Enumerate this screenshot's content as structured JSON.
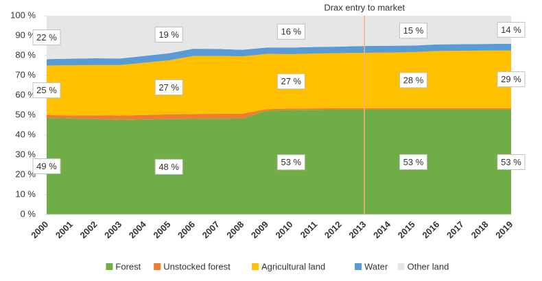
{
  "chart_data": {
    "type": "stacked-area",
    "categories": [
      "2000",
      "2001",
      "2002",
      "2003",
      "2004",
      "2005",
      "2006",
      "2007",
      "2008",
      "2009",
      "2010",
      "2011",
      "2012",
      "2013",
      "2014",
      "2015",
      "2016",
      "2017",
      "2018",
      "2019"
    ],
    "series": [
      {
        "name": "Forest",
        "color": "#70ad47",
        "values": [
          48.6,
          48.3,
          48.0,
          47.6,
          47.8,
          48.0,
          48.1,
          48.2,
          48.3,
          52.2,
          52.6,
          52.7,
          52.8,
          52.8,
          52.8,
          52.8,
          52.8,
          52.8,
          52.8,
          52.8
        ],
        "value_labels": [
          "49 %",
          null,
          null,
          null,
          null,
          "48 %",
          null,
          null,
          null,
          null,
          "53 %",
          null,
          null,
          null,
          null,
          "53 %",
          null,
          null,
          null,
          "53 %"
        ]
      },
      {
        "name": "Unstocked forest",
        "color": "#ed7d31",
        "values": [
          1.4,
          1.6,
          1.9,
          2.2,
          2.3,
          2.4,
          2.5,
          2.5,
          2.4,
          0.8,
          0.7,
          0.7,
          0.7,
          0.7,
          0.7,
          0.7,
          0.7,
          0.7,
          0.7,
          0.7
        ]
      },
      {
        "name": "Agricultural land",
        "color": "#ffc000",
        "values": [
          25.0,
          25.2,
          25.3,
          25.4,
          26.3,
          27.2,
          29.2,
          29.1,
          28.9,
          27.8,
          27.4,
          27.6,
          27.7,
          27.9,
          28.0,
          28.2,
          28.8,
          28.9,
          29.0,
          29.1
        ],
        "value_labels": [
          "25 %",
          null,
          null,
          null,
          null,
          "27 %",
          null,
          null,
          null,
          null,
          "27 %",
          null,
          null,
          null,
          null,
          "28 %",
          null,
          null,
          null,
          "29 %"
        ]
      },
      {
        "name": "Water",
        "color": "#5b9bd5",
        "values": [
          3.2,
          3.3,
          3.4,
          3.3,
          3.4,
          3.5,
          3.6,
          3.5,
          3.3,
          3.2,
          3.3,
          3.3,
          3.3,
          3.4,
          3.4,
          3.3,
          3.3,
          3.3,
          3.3,
          3.3
        ]
      },
      {
        "name": "Other land",
        "color": "#e6e6e6",
        "values": [
          21.8,
          21.6,
          21.4,
          21.5,
          20.2,
          18.9,
          16.6,
          16.7,
          17.1,
          16.0,
          16.0,
          15.7,
          15.5,
          15.2,
          15.1,
          15.0,
          14.4,
          14.3,
          14.2,
          14.1
        ],
        "value_labels": [
          "22 %",
          null,
          null,
          null,
          null,
          "19 %",
          null,
          null,
          null,
          null,
          "16 %",
          null,
          null,
          null,
          null,
          "15 %",
          null,
          null,
          null,
          "14 %"
        ]
      }
    ],
    "ylim": [
      0,
      100
    ],
    "yticks": [
      {
        "value": 0,
        "label": "0 %"
      },
      {
        "value": 10,
        "label": "10 %"
      },
      {
        "value": 20,
        "label": "20 %"
      },
      {
        "value": 30,
        "label": "30 %"
      },
      {
        "value": 40,
        "label": "40 %"
      },
      {
        "value": 50,
        "label": "50 %"
      },
      {
        "value": 60,
        "label": "60 %"
      },
      {
        "value": 70,
        "label": "70 %"
      },
      {
        "value": 80,
        "label": "80 %"
      },
      {
        "value": 90,
        "label": "90 %"
      },
      {
        "value": 100,
        "label": "100 %"
      }
    ],
    "annotation": {
      "label": "Drax entry to market",
      "category": "2013",
      "color": "#f4b183",
      "text_color": "#e8853d"
    },
    "legend": "bottom"
  }
}
